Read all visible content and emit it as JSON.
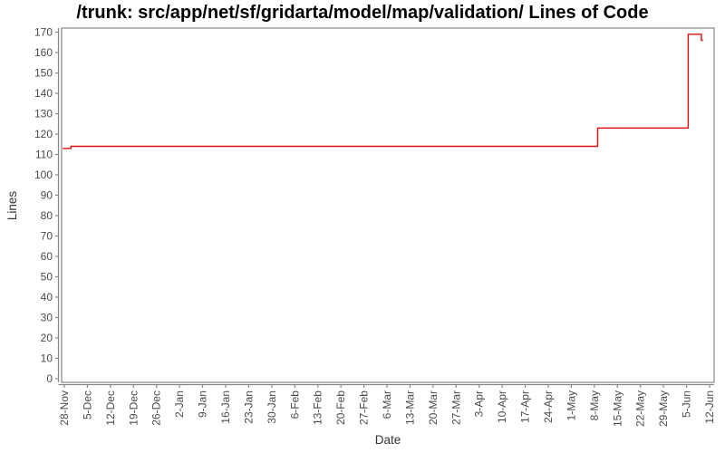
{
  "chart_data": {
    "type": "line",
    "line_style": "step",
    "title": "/trunk: src/app/net/sf/gridarta/model/map/validation/ Lines of Code",
    "xlabel": "Date",
    "ylabel": "Lines",
    "ylim": [
      0,
      170
    ],
    "ytick_step": 10,
    "grid": false,
    "legend": "none",
    "x_tick_labels": [
      "28-Nov",
      "5-Dec",
      "12-Dec",
      "19-Dec",
      "26-Dec",
      "2-Jan",
      "9-Jan",
      "16-Jan",
      "23-Jan",
      "30-Jan",
      "6-Feb",
      "13-Feb",
      "20-Feb",
      "27-Feb",
      "6-Mar",
      "13-Mar",
      "20-Mar",
      "27-Mar",
      "3-Apr",
      "10-Apr",
      "17-Apr",
      "24-Apr",
      "1-May",
      "8-May",
      "15-May",
      "22-May",
      "29-May",
      "5-Jun",
      "12-Jun"
    ],
    "x_tick_interval_days": 7,
    "series": [
      {
        "name": "Lines of Code",
        "color": "#e01111",
        "points_day_value": [
          [
            -0.5,
            113
          ],
          [
            2,
            113
          ],
          [
            2,
            114
          ],
          [
            162,
            114
          ],
          [
            162,
            123
          ],
          [
            189.5,
            123
          ],
          [
            189.5,
            169
          ],
          [
            193.5,
            169
          ],
          [
            193.5,
            166
          ],
          [
            194,
            166
          ]
        ]
      }
    ],
    "colors": {
      "frame": "#878787",
      "tick_label": "#4a4a4a",
      "axis_label": "#333333",
      "title": "#000000",
      "background": "#ffffff"
    }
  }
}
